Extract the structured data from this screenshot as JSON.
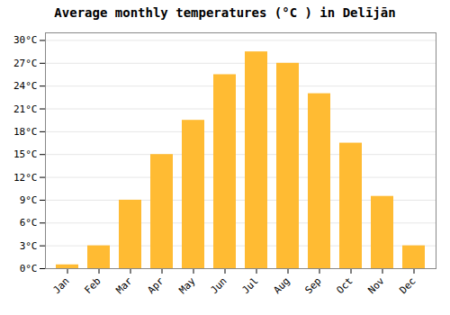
{
  "chart_data": {
    "type": "bar",
    "title": "Average monthly temperatures (°C ) in Delījān",
    "categories": [
      "Jan",
      "Feb",
      "Mar",
      "Apr",
      "May",
      "Jun",
      "Jul",
      "Aug",
      "Sep",
      "Oct",
      "Nov",
      "Dec"
    ],
    "values": [
      0.5,
      3.0,
      9.0,
      15.0,
      19.5,
      25.5,
      28.5,
      27.0,
      23.0,
      16.5,
      9.5,
      3.0
    ],
    "color": "#FFBB33",
    "ylim": [
      0,
      31
    ],
    "yticks": [
      {
        "value": 0,
        "label": "0°C"
      },
      {
        "value": 3,
        "label": "3°C"
      },
      {
        "value": 6,
        "label": "6°C"
      },
      {
        "value": 9,
        "label": "9°C"
      },
      {
        "value": 12,
        "label": "12°C"
      },
      {
        "value": 15,
        "label": "15°C"
      },
      {
        "value": 18,
        "label": "18°C"
      },
      {
        "value": 21,
        "label": "21°C"
      },
      {
        "value": 24,
        "label": "24°C"
      },
      {
        "value": 27,
        "label": "27°C"
      },
      {
        "value": 30,
        "label": "30°C"
      }
    ],
    "grid": true
  }
}
